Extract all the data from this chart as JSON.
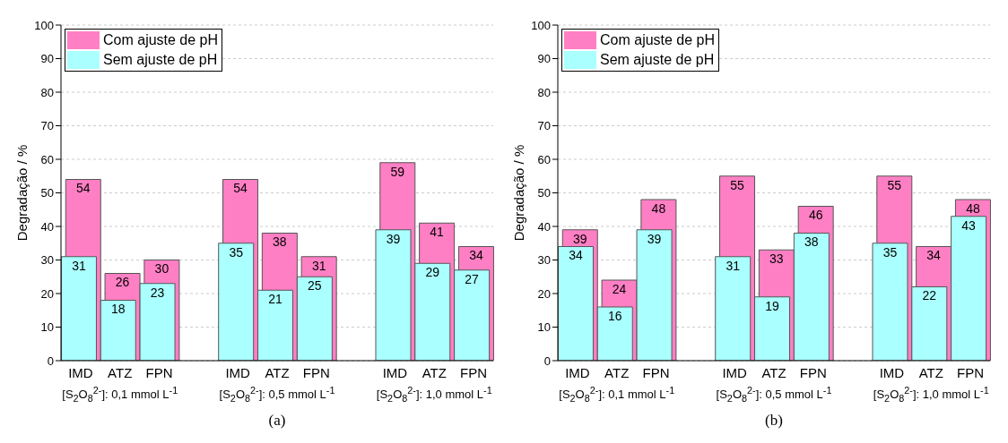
{
  "chart_data": [
    {
      "type": "bar",
      "categories": [
        "IMD",
        "ATZ",
        "FPN",
        null,
        "IMD",
        "ATZ",
        "FPN",
        null,
        "IMD",
        "ATZ",
        "FPN"
      ],
      "series": [
        {
          "name": "Com ajuste de pH",
          "color": "#ff7fc4",
          "values": [
            54,
            26,
            30,
            null,
            54,
            38,
            31,
            null,
            59,
            41,
            34
          ]
        },
        {
          "name": "Sem ajuste de pH",
          "color": "#aaffff",
          "values": [
            31,
            18,
            23,
            null,
            35,
            21,
            25,
            null,
            39,
            29,
            27
          ]
        }
      ],
      "ylim": [
        0,
        100
      ],
      "yticks": [
        0,
        10,
        20,
        30,
        40,
        50,
        60,
        70,
        80,
        90,
        100
      ],
      "ylabel": "Degradação / %",
      "xlabel": "(a)",
      "annotations": [
        "[S$_{2}$O$_{8}$$^{2-}$]: 0,1 mmol L$^{-1}$",
        "[S$_{2}$O$_{8}$$^{2-}$]: 0,5 mmol L$^{-1}$",
        "[S$_{2}$O$_{8}$$^{2-}$]: 1,0 mmol L$^{-1}$"
      ],
      "grid": "y",
      "legend": "top left",
      "data_labels": true
    },
    {
      "type": "bar",
      "categories": [
        "IMD",
        "ATZ",
        "FPN",
        null,
        "IMD",
        "ATZ",
        "FPN",
        null,
        "IMD",
        "ATZ",
        "FPN"
      ],
      "series": [
        {
          "name": "Com ajuste de pH",
          "color": "#ff7fc4",
          "values": [
            39,
            24,
            48,
            null,
            55,
            33,
            46,
            null,
            55,
            34,
            48
          ]
        },
        {
          "name": "Sem ajuste de pH",
          "color": "#aaffff",
          "values": [
            34,
            16,
            39,
            null,
            31,
            19,
            38,
            null,
            35,
            22,
            43
          ]
        }
      ],
      "ylim": [
        0,
        100
      ],
      "yticks": [
        0,
        10,
        20,
        30,
        40,
        50,
        60,
        70,
        80,
        90,
        100
      ],
      "ylabel": "Degradação / %",
      "xlabel": "(b)",
      "annotations": [
        "[S$_{2}$O$_{8}$$^{2-}$]: 0,1 mmol L$^{-1}$",
        "[S$_{2}$O$_{8}$$^{2-}$]: 0,5 mmol L$^{-1}$",
        "[S$_{2}$O$_{8}$$^{2-}$]: 1,0 mmol L$^{-1}$"
      ],
      "grid": "y",
      "legend": "top left",
      "data_labels": true
    }
  ]
}
